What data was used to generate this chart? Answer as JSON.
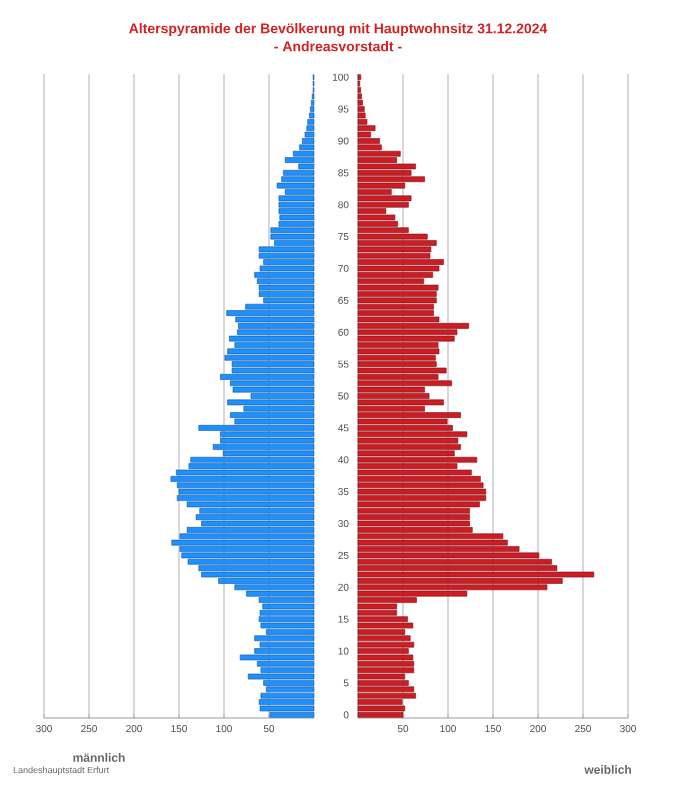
{
  "chart_data": [
    {
      "type": "bar",
      "orientation": "horizontal",
      "title": "Alterspyramide der Bevölkerung mit Hauptwohnsitz 31.12.2024",
      "subtitle": "- Andreasvorstadt -",
      "annotations": [
        "Landeshauptstadt Erfurt"
      ],
      "categories": [
        "100",
        null,
        null,
        null,
        null,
        "95",
        null,
        null,
        null,
        null,
        "90",
        null,
        null,
        null,
        null,
        "85",
        null,
        null,
        null,
        null,
        "80",
        null,
        null,
        null,
        null,
        "75",
        null,
        null,
        null,
        null,
        "70",
        null,
        null,
        null,
        null,
        "65",
        null,
        null,
        null,
        null,
        "60",
        null,
        null,
        null,
        null,
        "55",
        null,
        null,
        null,
        null,
        "50",
        null,
        null,
        null,
        null,
        "45",
        null,
        null,
        null,
        null,
        "40",
        null,
        null,
        null,
        null,
        "35",
        null,
        null,
        null,
        null,
        "30",
        null,
        null,
        null,
        null,
        "25",
        null,
        null,
        null,
        null,
        "20",
        null,
        null,
        null,
        null,
        "15",
        null,
        null,
        null,
        null,
        "10",
        null,
        null,
        null,
        null,
        "5",
        null,
        null,
        null,
        null,
        "0"
      ],
      "series": [
        {
          "name": "männlich",
          "color": "#1e90ff",
          "values": [
            1,
            1,
            1,
            2,
            3,
            4,
            5,
            7,
            8,
            10,
            13,
            16,
            23,
            32,
            17,
            34,
            36,
            41,
            32,
            39,
            39,
            39,
            38,
            39,
            48,
            48,
            44,
            61,
            61,
            56,
            60,
            66,
            63,
            61,
            61,
            56,
            76,
            97,
            87,
            84,
            85,
            94,
            88,
            96,
            99,
            91,
            91,
            104,
            93,
            90,
            70,
            96,
            78,
            93,
            88,
            128,
            104,
            104,
            112,
            101,
            137,
            139,
            153,
            159,
            152,
            150,
            152,
            141,
            127,
            131,
            125,
            141,
            149,
            158,
            149,
            147,
            140,
            128,
            125,
            106,
            88,
            75,
            61,
            57,
            60,
            61,
            59,
            53,
            66,
            60,
            66,
            82,
            63,
            59,
            73,
            56,
            53,
            59,
            61,
            60,
            49
          ]
        }
      ],
      "xlim": [
        300,
        0
      ],
      "xticks": [
        300,
        250,
        200,
        150,
        100,
        50
      ],
      "grid": "x",
      "tick_labels": "x"
    },
    {
      "type": "bar",
      "orientation": "horizontal",
      "categories": [
        "100",
        null,
        null,
        null,
        null,
        "95",
        null,
        null,
        null,
        null,
        "90",
        null,
        null,
        null,
        null,
        "85",
        null,
        null,
        null,
        null,
        "80",
        null,
        null,
        null,
        null,
        "75",
        null,
        null,
        null,
        null,
        "70",
        null,
        null,
        null,
        null,
        "65",
        null,
        null,
        null,
        null,
        "60",
        null,
        null,
        null,
        null,
        "55",
        null,
        null,
        null,
        null,
        "50",
        null,
        null,
        null,
        null,
        "45",
        null,
        null,
        null,
        null,
        "40",
        null,
        null,
        null,
        null,
        "35",
        null,
        null,
        null,
        null,
        "30",
        null,
        null,
        null,
        null,
        "25",
        null,
        null,
        null,
        null,
        "20",
        null,
        null,
        null,
        null,
        "15",
        null,
        null,
        null,
        null,
        "10",
        null,
        null,
        null,
        null,
        "5",
        null,
        null,
        null,
        null,
        "0"
      ],
      "series": [
        {
          "name": "weiblich",
          "color": "#cc1c24",
          "values": [
            3,
            2,
            3,
            4,
            5,
            7,
            8,
            10,
            19,
            14,
            24,
            26,
            47,
            43,
            64,
            59,
            74,
            52,
            37,
            59,
            56,
            31,
            41,
            44,
            56,
            77,
            87,
            81,
            80,
            95,
            90,
            83,
            73,
            89,
            87,
            87,
            84,
            84,
            90,
            123,
            110,
            107,
            89,
            90,
            86,
            87,
            98,
            89,
            104,
            74,
            79,
            95,
            74,
            114,
            99,
            105,
            121,
            111,
            114,
            107,
            132,
            110,
            126,
            136,
            139,
            142,
            142,
            135,
            124,
            124,
            124,
            127,
            161,
            166,
            179,
            201,
            215,
            221,
            262,
            227,
            210,
            121,
            65,
            43,
            43,
            55,
            61,
            52,
            58,
            62,
            56,
            61,
            62,
            62,
            52,
            56,
            62,
            64,
            49,
            52,
            50
          ]
        }
      ],
      "xlim": [
        0,
        300
      ],
      "xticks": [
        50,
        100,
        150,
        200,
        250,
        300
      ],
      "grid": "x"
    }
  ]
}
